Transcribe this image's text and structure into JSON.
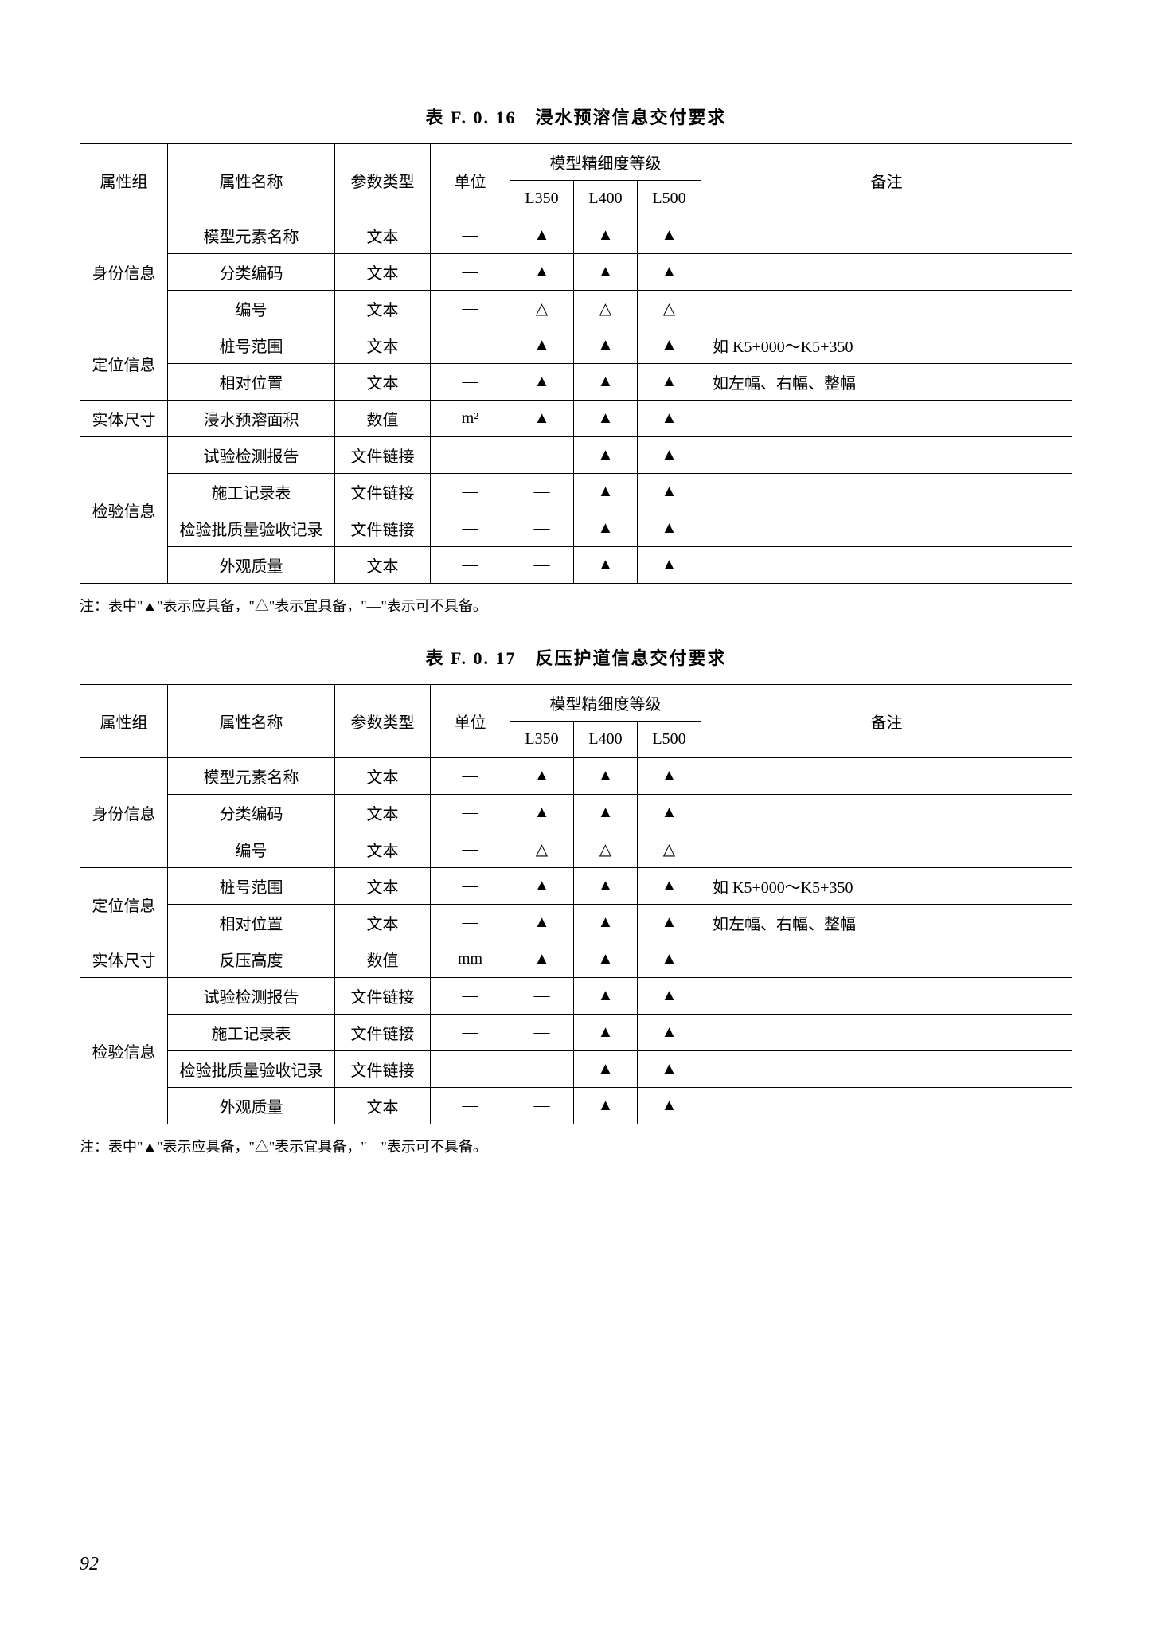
{
  "note": "注：表中\"▲\"表示应具备，\"△\"表示宜具备，\"—\"表示可不具备。",
  "page_number": "92",
  "headers": {
    "attr_group": "属性组",
    "attr_name": "属性名称",
    "param_type": "参数类型",
    "unit": "单位",
    "lod_title": "模型精细度等级",
    "l350": "L350",
    "l400": "L400",
    "l500": "L500",
    "remark": "备注"
  },
  "symbols": {
    "required": "▲",
    "recommended": "△",
    "optional": "—"
  },
  "tables": [
    {
      "title": "表 F. 0. 16　浸水预溶信息交付要求",
      "groups": [
        {
          "name": "身份信息",
          "rows": [
            {
              "name": "模型元素名称",
              "type": "文本",
              "unit": "—",
              "l350": "▲",
              "l400": "▲",
              "l500": "▲",
              "remark": ""
            },
            {
              "name": "分类编码",
              "type": "文本",
              "unit": "—",
              "l350": "▲",
              "l400": "▲",
              "l500": "▲",
              "remark": ""
            },
            {
              "name": "编号",
              "type": "文本",
              "unit": "—",
              "l350": "△",
              "l400": "△",
              "l500": "△",
              "remark": ""
            }
          ]
        },
        {
          "name": "定位信息",
          "rows": [
            {
              "name": "桩号范围",
              "type": "文本",
              "unit": "—",
              "l350": "▲",
              "l400": "▲",
              "l500": "▲",
              "remark": "如 K5+000～K5+350"
            },
            {
              "name": "相对位置",
              "type": "文本",
              "unit": "—",
              "l350": "▲",
              "l400": "▲",
              "l500": "▲",
              "remark": "如左幅、右幅、整幅"
            }
          ]
        },
        {
          "name": "实体尺寸",
          "rows": [
            {
              "name": "浸水预溶面积",
              "type": "数值",
              "unit": "m²",
              "l350": "▲",
              "l400": "▲",
              "l500": "▲",
              "remark": ""
            }
          ]
        },
        {
          "name": "检验信息",
          "rows": [
            {
              "name": "试验检测报告",
              "type": "文件链接",
              "unit": "—",
              "l350": "—",
              "l400": "▲",
              "l500": "▲",
              "remark": ""
            },
            {
              "name": "施工记录表",
              "type": "文件链接",
              "unit": "—",
              "l350": "—",
              "l400": "▲",
              "l500": "▲",
              "remark": ""
            },
            {
              "name": "检验批质量验收记录",
              "type": "文件链接",
              "unit": "—",
              "l350": "—",
              "l400": "▲",
              "l500": "▲",
              "remark": ""
            },
            {
              "name": "外观质量",
              "type": "文本",
              "unit": "—",
              "l350": "—",
              "l400": "▲",
              "l500": "▲",
              "remark": ""
            }
          ]
        }
      ]
    },
    {
      "title": "表 F. 0. 17　反压护道信息交付要求",
      "groups": [
        {
          "name": "身份信息",
          "rows": [
            {
              "name": "模型元素名称",
              "type": "文本",
              "unit": "—",
              "l350": "▲",
              "l400": "▲",
              "l500": "▲",
              "remark": ""
            },
            {
              "name": "分类编码",
              "type": "文本",
              "unit": "—",
              "l350": "▲",
              "l400": "▲",
              "l500": "▲",
              "remark": ""
            },
            {
              "name": "编号",
              "type": "文本",
              "unit": "—",
              "l350": "△",
              "l400": "△",
              "l500": "△",
              "remark": ""
            }
          ]
        },
        {
          "name": "定位信息",
          "rows": [
            {
              "name": "桩号范围",
              "type": "文本",
              "unit": "—",
              "l350": "▲",
              "l400": "▲",
              "l500": "▲",
              "remark": "如 K5+000～K5+350"
            },
            {
              "name": "相对位置",
              "type": "文本",
              "unit": "—",
              "l350": "▲",
              "l400": "▲",
              "l500": "▲",
              "remark": "如左幅、右幅、整幅"
            }
          ]
        },
        {
          "name": "实体尺寸",
          "rows": [
            {
              "name": "反压高度",
              "type": "数值",
              "unit": "mm",
              "l350": "▲",
              "l400": "▲",
              "l500": "▲",
              "remark": ""
            }
          ]
        },
        {
          "name": "检验信息",
          "rows": [
            {
              "name": "试验检测报告",
              "type": "文件链接",
              "unit": "—",
              "l350": "—",
              "l400": "▲",
              "l500": "▲",
              "remark": ""
            },
            {
              "name": "施工记录表",
              "type": "文件链接",
              "unit": "—",
              "l350": "—",
              "l400": "▲",
              "l500": "▲",
              "remark": ""
            },
            {
              "name": "检验批质量验收记录",
              "type": "文件链接",
              "unit": "—",
              "l350": "—",
              "l400": "▲",
              "l500": "▲",
              "remark": ""
            },
            {
              "name": "外观质量",
              "type": "文本",
              "unit": "—",
              "l350": "—",
              "l400": "▲",
              "l500": "▲",
              "remark": ""
            }
          ]
        }
      ]
    }
  ]
}
